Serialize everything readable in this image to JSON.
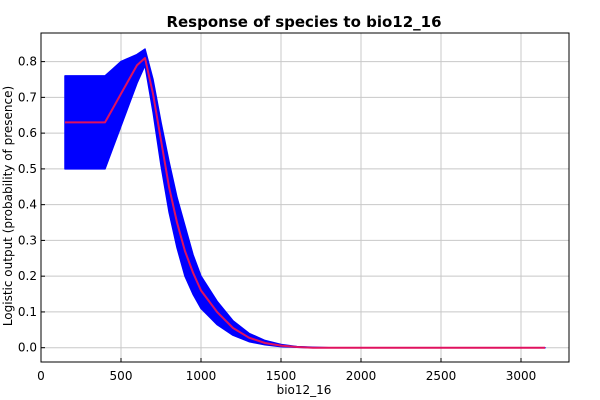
{
  "chart_data": {
    "type": "area",
    "title": "Response of species to bio12_16",
    "xlabel": "bio12_16",
    "ylabel": "Logistic output (probability of presence)",
    "xlim": [
      0,
      3300
    ],
    "ylim": [
      -0.04,
      0.88
    ],
    "xticks": [
      0,
      500,
      1000,
      1500,
      2000,
      2500,
      3000
    ],
    "yticks": [
      0.0,
      0.1,
      0.2,
      0.3,
      0.4,
      0.5,
      0.6,
      0.7,
      0.8
    ],
    "grid": true,
    "colors": {
      "band": "#0000ff",
      "mean": "#e0115f"
    },
    "series": [
      {
        "role": "mean",
        "x": [
          150,
          400,
          450,
          500,
          550,
          600,
          650,
          700,
          750,
          800,
          850,
          900,
          950,
          1000,
          1100,
          1200,
          1300,
          1400,
          1500,
          1600,
          1700,
          1800,
          2000,
          2500,
          3000,
          3150
        ],
        "y": [
          0.63,
          0.63,
          0.67,
          0.71,
          0.75,
          0.79,
          0.81,
          0.71,
          0.58,
          0.45,
          0.35,
          0.27,
          0.21,
          0.16,
          0.1,
          0.055,
          0.028,
          0.013,
          0.006,
          0.002,
          0.0,
          0.0,
          0.0,
          0.0,
          0.0,
          0.0
        ]
      },
      {
        "role": "upper",
        "x": [
          150,
          400,
          450,
          500,
          550,
          600,
          650,
          700,
          750,
          800,
          850,
          900,
          950,
          1000,
          1100,
          1200,
          1300,
          1400,
          1500,
          1600,
          1700,
          1800,
          2000,
          2500,
          3000,
          3150
        ],
        "y": [
          0.76,
          0.76,
          0.78,
          0.8,
          0.81,
          0.82,
          0.835,
          0.75,
          0.63,
          0.52,
          0.42,
          0.34,
          0.26,
          0.2,
          0.13,
          0.075,
          0.04,
          0.02,
          0.009,
          0.003,
          0.001,
          0.0,
          0.0,
          0.0,
          0.0,
          0.0
        ]
      },
      {
        "role": "lower",
        "x": [
          150,
          400,
          450,
          500,
          550,
          600,
          650,
          700,
          750,
          800,
          850,
          900,
          950,
          1000,
          1100,
          1200,
          1300,
          1400,
          1500,
          1600,
          1700,
          1800,
          2000,
          2500,
          3000,
          3150
        ],
        "y": [
          0.5,
          0.5,
          0.56,
          0.62,
          0.68,
          0.74,
          0.79,
          0.66,
          0.51,
          0.38,
          0.28,
          0.2,
          0.15,
          0.11,
          0.065,
          0.035,
          0.017,
          0.008,
          0.003,
          0.001,
          0.0,
          0.0,
          0.0,
          0.0,
          0.0,
          0.0
        ]
      }
    ]
  }
}
